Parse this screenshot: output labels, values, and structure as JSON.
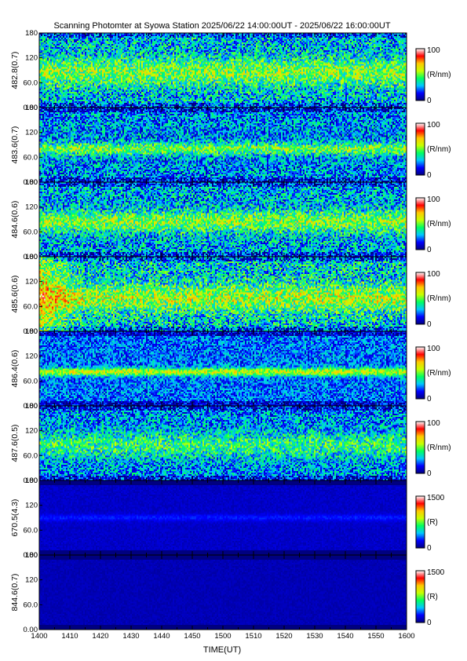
{
  "chart_data": {
    "type": "heatmap",
    "title": "Scanning Photomter at Syowa Station 2025/06/22 14:00:00UT - 2025/06/22 16:00:00UT",
    "xlabel": "TIME(UT)",
    "x_ticks": [
      "1400",
      "1410",
      "1420",
      "1430",
      "1440",
      "1450",
      "1500",
      "1510",
      "1520",
      "1530",
      "1540",
      "1550",
      "1600"
    ],
    "y_ticks": [
      "0.00",
      "60.0",
      "120",
      "180"
    ],
    "ylim": [
      0,
      180
    ],
    "colormap": [
      "#000080",
      "#0000ff",
      "#00c8ff",
      "#00ff60",
      "#c8ff00",
      "#ffc800",
      "#ff0000",
      "#ffffff"
    ],
    "panels": [
      {
        "ylabel": "482.8(0.7)",
        "cbar_unit": "(R/nm)",
        "cbar_max": "100",
        "cbar_min": "0",
        "band_center": 85,
        "band_width": 30,
        "background_level": 0.3,
        "band_level": 0.52,
        "noise": 0.42
      },
      {
        "ylabel": "483.6(0.7)",
        "cbar_unit": "(R/nm)",
        "cbar_max": "100",
        "cbar_min": "0",
        "band_center": 80,
        "band_width": 14,
        "background_level": 0.25,
        "band_level": 0.5,
        "noise": 0.4
      },
      {
        "ylabel": "484.6(0.6)",
        "cbar_unit": "(R/nm)",
        "cbar_max": "100",
        "cbar_min": "0",
        "band_center": 85,
        "band_width": 24,
        "background_level": 0.28,
        "band_level": 0.52,
        "noise": 0.42
      },
      {
        "ylabel": "485.6(0.6)",
        "cbar_unit": "(R/nm)",
        "cbar_max": "100",
        "cbar_min": "0",
        "band_center": 80,
        "band_width": 30,
        "background_level": 0.32,
        "band_level": 0.56,
        "noise": 0.44
      },
      {
        "ylabel": "486.4(0.6)",
        "cbar_unit": "(R/nm)",
        "cbar_max": "100",
        "cbar_min": "0",
        "band_center": 82,
        "band_width": 9,
        "background_level": 0.22,
        "band_level": 0.6,
        "noise": 0.3
      },
      {
        "ylabel": "487.6(0.5)",
        "cbar_unit": "(R/nm)",
        "cbar_max": "100",
        "cbar_min": "0",
        "band_center": 85,
        "band_width": 30,
        "background_level": 0.25,
        "band_level": 0.42,
        "noise": 0.38
      },
      {
        "ylabel": "670.5(4.3)",
        "cbar_unit": "(R)",
        "cbar_max": "1500",
        "cbar_min": "0",
        "band_center": 90,
        "band_width": 8,
        "background_level": 0.08,
        "band_level": 0.16,
        "noise": 0.05
      },
      {
        "ylabel": "844.6(0.7)",
        "cbar_unit": "(R)",
        "cbar_max": "1500",
        "cbar_min": "0",
        "band_center": 90,
        "band_width": 30,
        "background_level": 0.06,
        "band_level": 0.06,
        "noise": 0.04
      }
    ]
  }
}
